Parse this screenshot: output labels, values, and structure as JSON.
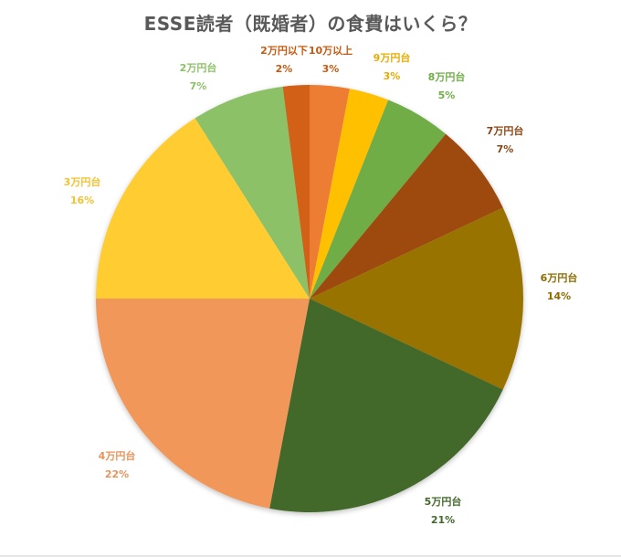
{
  "chart_data": {
    "type": "pie",
    "title": "ESSE読者（既婚者）の食費はいくら？",
    "start_angle_deg": 0,
    "direction": "clockwise",
    "legend": "none (data labels on slices)",
    "slices": [
      {
        "label": "10万以上",
        "value": 3,
        "display": "3%",
        "color": "#ED7D31",
        "label_color": "#C55A11"
      },
      {
        "label": "9万円台",
        "value": 3,
        "display": "3%",
        "color": "#FFC000",
        "label_color": "#E6AC00"
      },
      {
        "label": "8万円台",
        "value": 5,
        "display": "5%",
        "color": "#70AD47",
        "label_color": "#70AD47"
      },
      {
        "label": "7万円台",
        "value": 7,
        "display": "7%",
        "color": "#9E480E",
        "label_color": "#8B4513"
      },
      {
        "label": "6万円台",
        "value": 14,
        "display": "14%",
        "color": "#997300",
        "label_color": "#8C6B00"
      },
      {
        "label": "5万円台",
        "value": 21,
        "display": "21%",
        "color": "#43682B",
        "label_color": "#43682B"
      },
      {
        "label": "4万円台",
        "value": 22,
        "display": "22%",
        "color": "#F1975A",
        "label_color": "#E8935A"
      },
      {
        "label": "3万円台",
        "value": 16,
        "display": "16%",
        "color": "#FFCD33",
        "label_color": "#F2C230"
      },
      {
        "label": "2万円台",
        "value": 7,
        "display": "7%",
        "color": "#8CC168",
        "label_color": "#8CC168"
      },
      {
        "label": "2万円以下",
        "value": 2,
        "display": "2%",
        "color": "#D26012",
        "label_color": "#C55A11"
      }
    ]
  },
  "title": "ESSE読者（既婚者）の食費はいくら？",
  "labels": [
    {
      "name": "10万以上",
      "pct": "3%"
    },
    {
      "name": "9万円台",
      "pct": "3%"
    },
    {
      "name": "8万円台",
      "pct": "5%"
    },
    {
      "name": "7万円台",
      "pct": "7%"
    },
    {
      "name": "6万円台",
      "pct": "14%"
    },
    {
      "name": "5万円台",
      "pct": "21%"
    },
    {
      "name": "4万円台",
      "pct": "22%"
    },
    {
      "name": "3万円台",
      "pct": "16%"
    },
    {
      "name": "2万円台",
      "pct": "7%"
    },
    {
      "name": "2万円以下",
      "pct": "2%"
    }
  ]
}
